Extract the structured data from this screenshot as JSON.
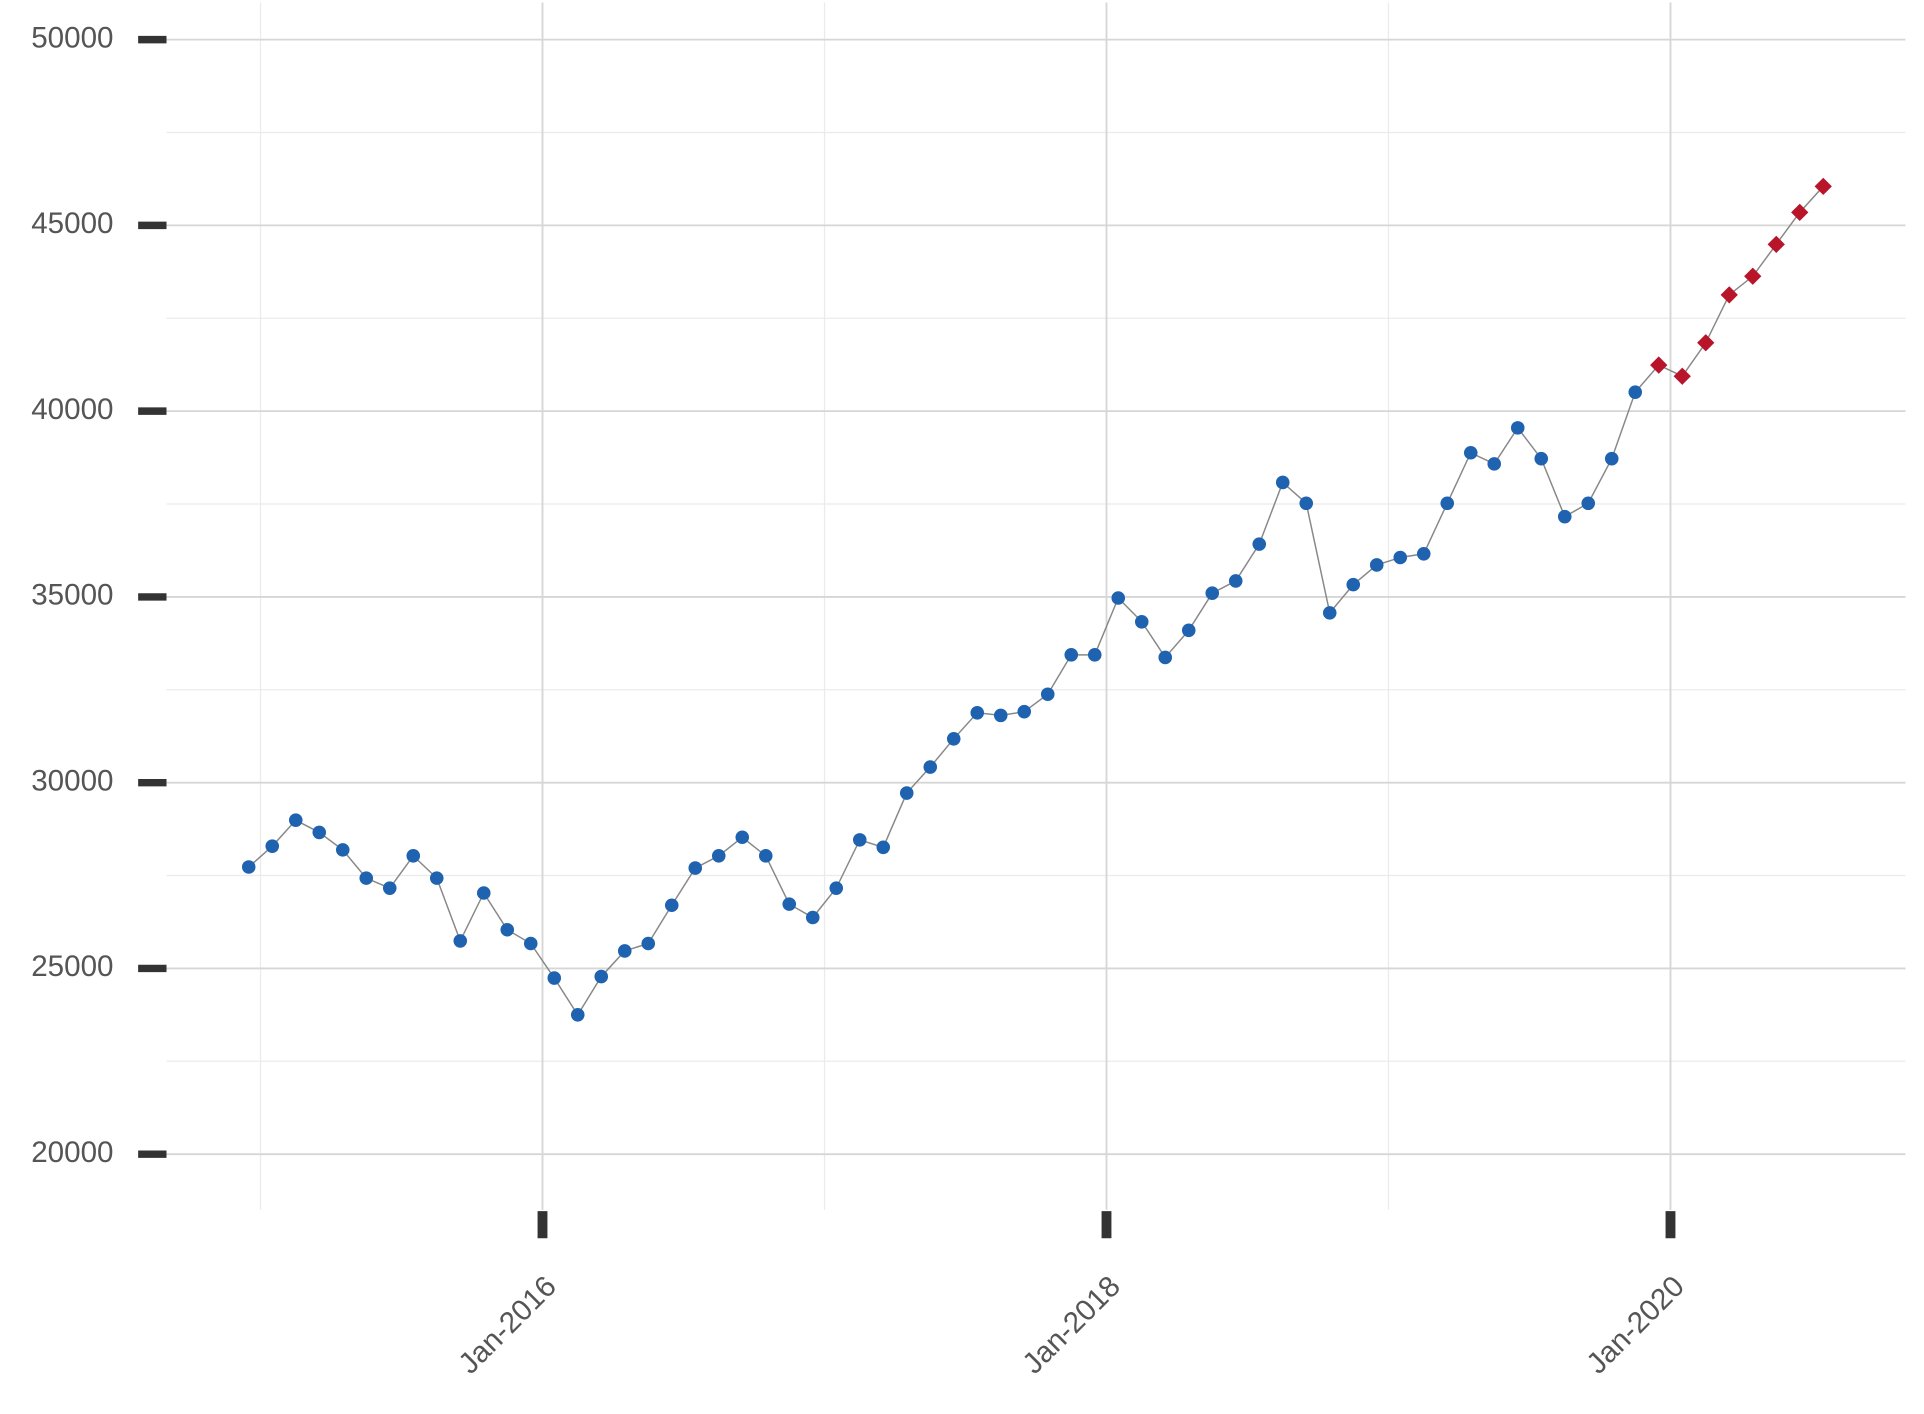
{
  "chart_data": {
    "type": "line",
    "x": [
      "2014-12",
      "2015-01",
      "2015-02",
      "2015-03",
      "2015-04",
      "2015-05",
      "2015-06",
      "2015-07",
      "2015-08",
      "2015-09",
      "2015-10",
      "2015-11",
      "2015-12",
      "2016-01",
      "2016-02",
      "2016-03",
      "2016-04",
      "2016-05",
      "2016-06",
      "2016-07",
      "2016-08",
      "2016-09",
      "2016-10",
      "2016-11",
      "2016-12",
      "2017-01",
      "2017-02",
      "2017-03",
      "2017-04",
      "2017-05",
      "2017-06",
      "2017-07",
      "2017-08",
      "2017-09",
      "2017-10",
      "2017-11",
      "2017-12",
      "2018-01",
      "2018-02",
      "2018-03",
      "2018-04",
      "2018-05",
      "2018-06",
      "2018-07",
      "2018-08",
      "2018-09",
      "2018-10",
      "2018-11",
      "2018-12",
      "2019-01",
      "2019-02",
      "2019-03",
      "2019-04",
      "2019-05",
      "2019-06",
      "2019-07",
      "2019-08",
      "2019-09",
      "2019-10",
      "2019-11",
      "2019-12",
      "2020-01",
      "2020-02",
      "2020-03",
      "2020-04",
      "2020-05",
      "2020-06",
      "2020-07"
    ],
    "series": [
      {
        "color": "#1f63b0",
        "marker": "circle",
        "values": [
          27730,
          28290,
          28990,
          28660,
          28190,
          27430,
          27160,
          28030,
          27430,
          25740,
          27030,
          26040,
          25670,
          24740,
          23750,
          24780,
          25470,
          25670,
          26700,
          27700,
          28030,
          28530,
          28030,
          26730,
          26370,
          27160,
          28460,
          28260,
          29720,
          30420,
          31180,
          31880,
          31810,
          31910,
          32380,
          33440,
          33440,
          34970,
          34330,
          33370,
          34100,
          35100,
          35430,
          36420,
          38080,
          37520,
          34570,
          35330,
          35860,
          36060,
          36160,
          37520,
          38880,
          38580,
          39550,
          38720,
          37160,
          37520,
          38720,
          40510,
          null,
          null,
          null,
          null,
          null,
          null,
          null,
          null
        ]
      },
      {
        "color": "#b8142a",
        "marker": "diamond",
        "values": [
          null,
          null,
          null,
          null,
          null,
          null,
          null,
          null,
          null,
          null,
          null,
          null,
          null,
          null,
          null,
          null,
          null,
          null,
          null,
          null,
          null,
          null,
          null,
          null,
          null,
          null,
          null,
          null,
          null,
          null,
          null,
          null,
          null,
          null,
          null,
          null,
          null,
          null,
          null,
          null,
          null,
          null,
          null,
          null,
          null,
          null,
          null,
          null,
          null,
          null,
          null,
          null,
          null,
          null,
          null,
          null,
          null,
          null,
          null,
          null,
          41240,
          40940,
          41840,
          43130,
          43630,
          44490,
          45350,
          46050
        ]
      }
    ],
    "line_color": "#888888",
    "xlim": [
      "2014-09",
      "2020-11"
    ],
    "xticks": [
      {
        "value": "2016-01",
        "label": "Jan-2016"
      },
      {
        "value": "2018-01",
        "label": "Jan-2018"
      },
      {
        "value": "2020-01",
        "label": "Jan-2020"
      }
    ],
    "x_minor_ticks": [
      "2015-01",
      "2017-01",
      "2019-01"
    ],
    "ylim": [
      18500,
      51000
    ],
    "yticks": [
      20000,
      25000,
      30000,
      35000,
      40000,
      45000,
      50000
    ],
    "y_minor_ticks": [
      22500,
      27500,
      32500,
      37500,
      42500,
      47500
    ],
    "grid": true
  }
}
